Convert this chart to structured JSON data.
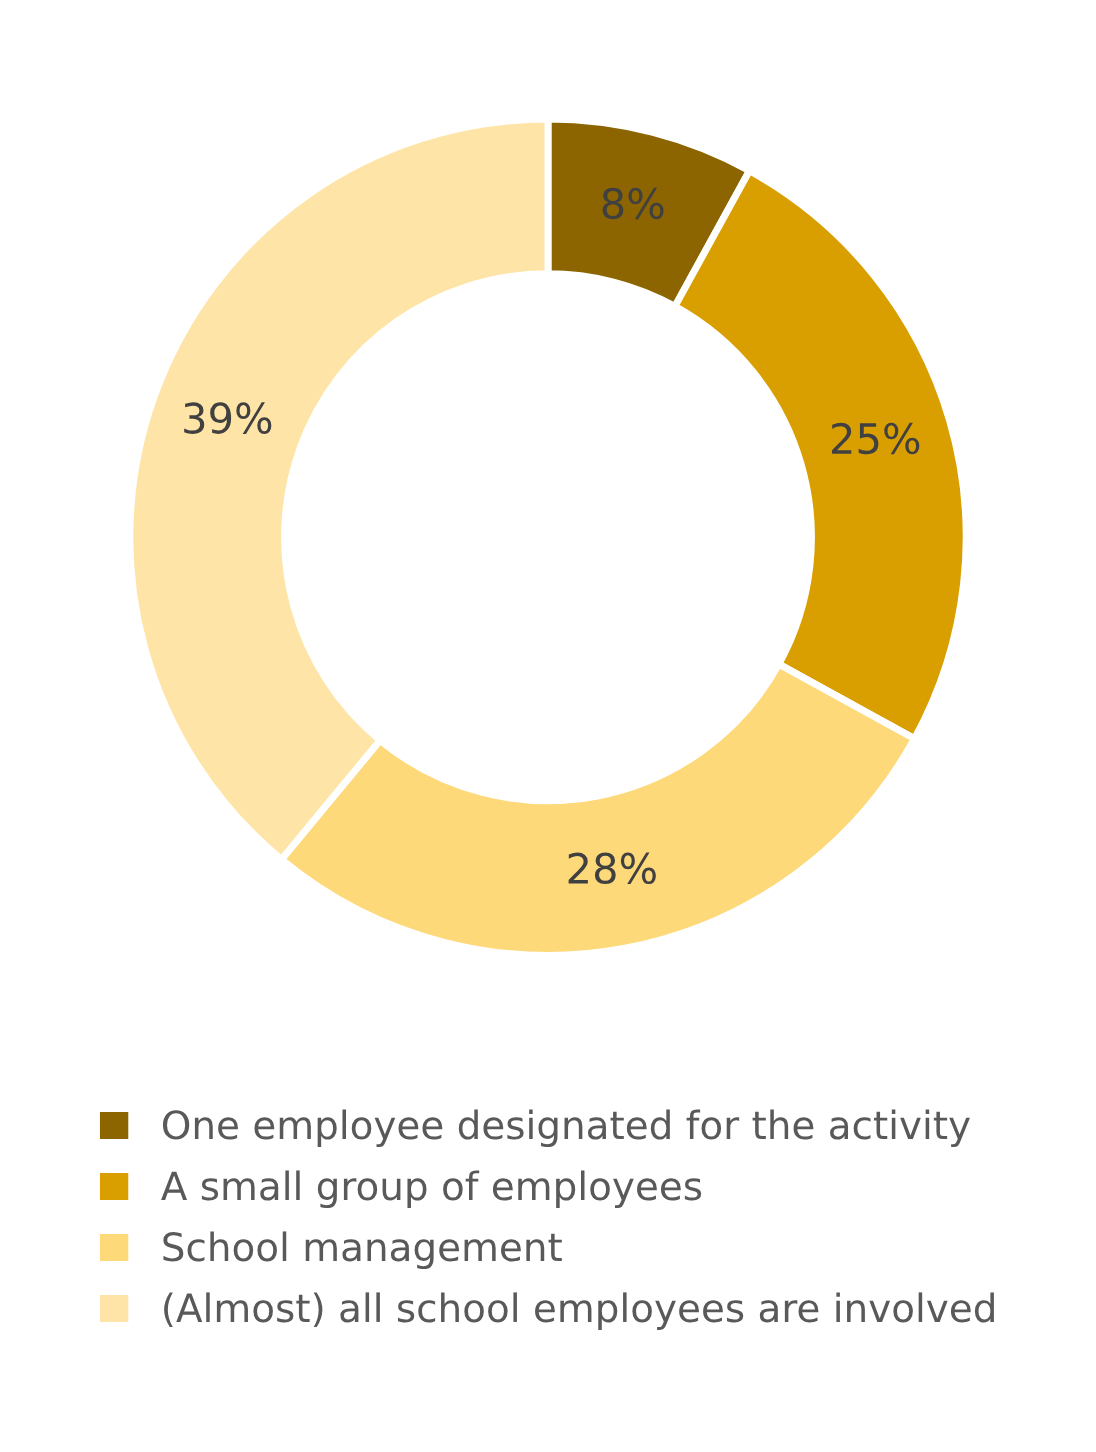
{
  "chart_data": {
    "type": "donut",
    "categories": [
      "One employee designated for the activity",
      "A small group of employees",
      "School management",
      "(Almost) all school employees are involved"
    ],
    "values": [
      8,
      25,
      28,
      39
    ],
    "value_labels": [
      "8%",
      "25%",
      "28%",
      "39%"
    ],
    "colors": [
      "#8c6400",
      "#d99e00",
      "#fdd97a",
      "#fee4a6"
    ],
    "legend": "bottom"
  }
}
